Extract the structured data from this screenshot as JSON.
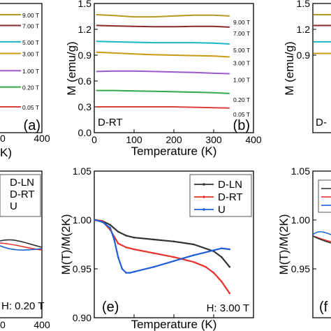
{
  "colors": {
    "axis": "#000000",
    "d_ln": "#333333",
    "d_rt": "#e8322d",
    "u": "#1f5fd6",
    "field_9T": "#b59a1e",
    "field_7T": "#8c2a2a",
    "field_5T": "#17b8c8",
    "field_3T": "#c99a12",
    "field_1T": "#9b59d0",
    "field_020T": "#35a84a",
    "field_005T": "#d9413a"
  },
  "chart_data": [
    {
      "panel": "a",
      "type": "line",
      "panel_label": "(a)",
      "xlabel": "K)",
      "xtick_labels": [
        "0",
        "400"
      ],
      "series": [
        {
          "name": "9.00 T",
          "x": [
            0,
            350
          ],
          "y": [
            1.37,
            1.37
          ]
        },
        {
          "name": "7.00 T",
          "x": [
            0,
            350
          ],
          "y": [
            1.245,
            1.245
          ]
        },
        {
          "name": "5.00 T",
          "x": [
            0,
            350
          ],
          "y": [
            1.055,
            1.055
          ]
        },
        {
          "name": "3.00 T",
          "x": [
            0,
            350
          ],
          "y": [
            0.92,
            0.92
          ]
        },
        {
          "name": "1.00 T",
          "x": [
            0,
            350
          ],
          "y": [
            0.72,
            0.72
          ]
        },
        {
          "name": "0.20 T",
          "x": [
            0,
            350
          ],
          "y": [
            0.53,
            0.53
          ]
        },
        {
          "name": "0.05 T",
          "x": [
            0,
            350
          ],
          "y": [
            0.3,
            0.3
          ]
        }
      ]
    },
    {
      "panel": "b",
      "type": "line",
      "panel_label": "(b)",
      "sample_label": "D-RT",
      "xlabel": "Temperature (K)",
      "ylabel": "M (emu/g)",
      "xlim": [
        0,
        400
      ],
      "ylim": [
        0.0,
        1.5
      ],
      "xticks": [
        0,
        100,
        200,
        300,
        400
      ],
      "yticks": [
        0.0,
        0.3,
        0.6,
        0.9,
        1.2,
        1.5
      ],
      "ytick_labels": [
        "0.0",
        "0.3",
        "0.6",
        "0.9",
        "1.2",
        "1.5"
      ],
      "series": [
        {
          "name": "9.00 T",
          "x": [
            5,
            50,
            100,
            150,
            200,
            250,
            300,
            340
          ],
          "y": [
            1.37,
            1.36,
            1.345,
            1.345,
            1.355,
            1.365,
            1.365,
            1.355
          ]
        },
        {
          "name": "7.00 T",
          "x": [
            5,
            50,
            100,
            150,
            200,
            250,
            300,
            340
          ],
          "y": [
            1.245,
            1.24,
            1.235,
            1.23,
            1.23,
            1.235,
            1.235,
            1.225
          ]
        },
        {
          "name": "5.00 T",
          "x": [
            5,
            50,
            100,
            150,
            200,
            250,
            300,
            340
          ],
          "y": [
            1.06,
            1.055,
            1.05,
            1.045,
            1.045,
            1.045,
            1.04,
            1.03
          ]
        },
        {
          "name": "3.00 T",
          "x": [
            5,
            50,
            100,
            150,
            200,
            250,
            300,
            340
          ],
          "y": [
            0.935,
            0.925,
            0.915,
            0.905,
            0.9,
            0.895,
            0.89,
            0.88
          ]
        },
        {
          "name": "1.00 T",
          "x": [
            5,
            50,
            100,
            150,
            200,
            250,
            300,
            340
          ],
          "y": [
            0.71,
            0.715,
            0.715,
            0.71,
            0.705,
            0.7,
            0.69,
            0.685
          ]
        },
        {
          "name": "0.20 T",
          "x": [
            5,
            50,
            100,
            150,
            200,
            250,
            300,
            340
          ],
          "y": [
            0.49,
            0.49,
            0.485,
            0.48,
            0.475,
            0.47,
            0.465,
            0.455
          ]
        },
        {
          "name": "0.05 T",
          "x": [
            5,
            50,
            100,
            150,
            200,
            250,
            300,
            340
          ],
          "y": [
            0.3,
            0.3,
            0.3,
            0.3,
            0.3,
            0.295,
            0.29,
            0.285
          ]
        }
      ]
    },
    {
      "panel": "c",
      "type": "line",
      "panel_label": "(c)",
      "sample_label": "D-",
      "ylabel": "M (emu/g)",
      "yticks": [
        1.5,
        1.2,
        0.9
      ],
      "ytick_labels": [
        "1.5",
        "1.2",
        "0.9"
      ]
    },
    {
      "panel": "d",
      "type": "line",
      "field_label": "H: 0.20 T",
      "xtick_labels": [
        "0",
        "400"
      ],
      "legend": [
        "D-LN",
        "D-RT",
        "U"
      ]
    },
    {
      "panel": "e",
      "type": "line",
      "panel_label": "(e)",
      "field_label": "H: 3.00 T",
      "xlabel": "Temperature (K)",
      "ylabel": "M(T)/M(2K)",
      "xlim": [
        0,
        400
      ],
      "ylim": [
        0.9,
        1.05
      ],
      "xticks": [
        0,
        100,
        200,
        300,
        400
      ],
      "yticks": [
        0.9,
        0.95,
        1.0,
        1.05
      ],
      "ytick_labels": [
        "0.90",
        "0.95",
        "1.00",
        "1.05"
      ],
      "legend_placement": "top-right",
      "series": [
        {
          "name": "D-LN",
          "x": [
            2,
            20,
            40,
            60,
            80,
            100,
            150,
            200,
            250,
            300,
            320,
            340
          ],
          "y": [
            1.0,
            0.999,
            0.995,
            0.988,
            0.984,
            0.982,
            0.98,
            0.978,
            0.975,
            0.968,
            0.962,
            0.952
          ]
        },
        {
          "name": "D-RT",
          "x": [
            2,
            20,
            40,
            60,
            80,
            100,
            150,
            200,
            250,
            280,
            300,
            320,
            340
          ],
          "y": [
            1.0,
            0.999,
            0.99,
            0.976,
            0.972,
            0.97,
            0.966,
            0.962,
            0.957,
            0.952,
            0.946,
            0.937,
            0.925
          ]
        },
        {
          "name": "U",
          "x": [
            2,
            20,
            40,
            50,
            60,
            70,
            80,
            90,
            100,
            150,
            200,
            250,
            300,
            320,
            340
          ],
          "y": [
            1.0,
            0.998,
            0.992,
            0.98,
            0.962,
            0.95,
            0.946,
            0.946,
            0.947,
            0.952,
            0.958,
            0.964,
            0.969,
            0.971,
            0.97
          ]
        }
      ]
    },
    {
      "panel": "f",
      "type": "line",
      "panel_label": "(f",
      "ylabel": "M(T)/M(2K)",
      "yticks": [
        1.05,
        1.0,
        0.95
      ],
      "ytick_labels": [
        "1.05",
        "1.00",
        "0.95"
      ]
    }
  ]
}
